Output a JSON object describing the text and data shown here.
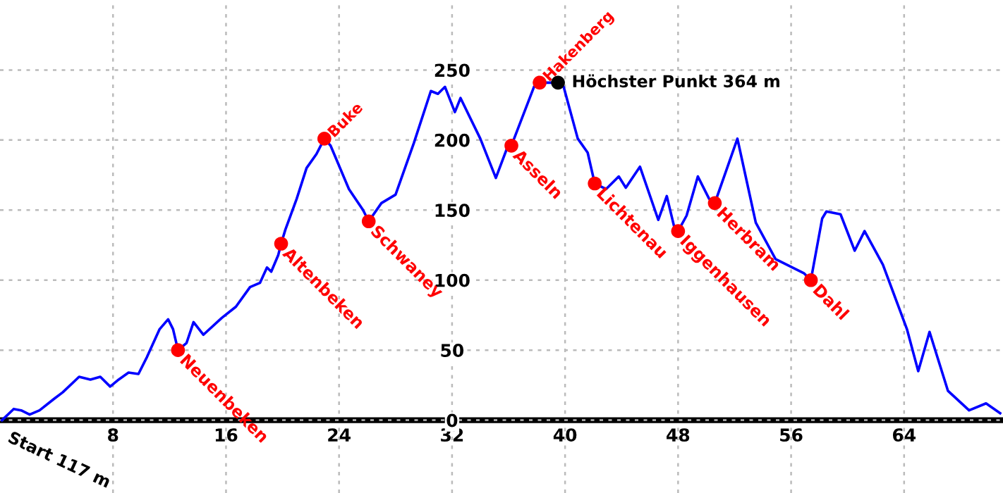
{
  "chart_data": {
    "type": "line",
    "xlim": [
      0,
      71
    ],
    "ylim": [
      -52,
      300
    ],
    "xticks": [
      8,
      16,
      24,
      32,
      40,
      48,
      56,
      64
    ],
    "yticks": [
      0,
      50,
      100,
      150,
      200,
      250
    ],
    "grid": true,
    "line_style": "solid",
    "series": [
      {
        "color": "#0000ff",
        "x": [
          0.14,
          0.97,
          1.5,
          2.1,
          2.8,
          3.8,
          4.45,
          5.6,
          6.4,
          7.1,
          7.8,
          8.4,
          9.1,
          9.8,
          10.4,
          11.3,
          11.9,
          12.25,
          12.6,
          13.2,
          13.7,
          14.4,
          15.7,
          16.7,
          17.7,
          18.4,
          18.9,
          19.2,
          19.7,
          19.9,
          20.2,
          21.0,
          21.7,
          22.4,
          22.96,
          23.4,
          24.7,
          25.7,
          26.1,
          27.0,
          28.0,
          29.3,
          30.5,
          31.0,
          31.5,
          32.2,
          32.6,
          34.0,
          35.1,
          35.96,
          36.2,
          37.8,
          38.2,
          39.5,
          39.9,
          40.9,
          41.6,
          42.1,
          42.9,
          43.8,
          44.3,
          45.3,
          46.6,
          47.2,
          47.7,
          48.0,
          48.6,
          49.4,
          50.2,
          50.6,
          52.2,
          53.5,
          54.9,
          56.9,
          57.4,
          58.2,
          58.5,
          59.5,
          60.5,
          61.2,
          62.5,
          64.2,
          65.0,
          65.8,
          67.1,
          68.6,
          69.8,
          70.8
        ],
        "values": [
          0,
          8,
          7,
          4,
          7,
          15,
          20,
          31,
          29,
          31,
          24,
          29,
          34,
          33,
          45,
          65,
          72,
          65,
          50,
          55,
          70,
          61,
          73,
          81,
          95,
          98,
          109,
          106,
          118,
          126,
          136,
          158,
          180,
          190,
          201,
          196,
          165,
          150,
          142,
          155,
          161,
          198,
          235,
          233,
          238,
          220,
          230,
          201,
          173,
          196,
          196,
          238,
          241,
          241,
          238,
          201,
          191,
          169,
          165,
          174,
          166,
          181,
          143,
          160,
          139,
          135,
          146,
          174,
          158,
          155,
          201,
          141,
          115,
          105,
          100,
          144,
          149,
          147,
          121,
          135,
          111,
          65,
          35,
          63,
          21,
          7,
          12,
          5
        ]
      },
      {
        "type": "scatter",
        "marker": "circle",
        "color": "#ff0000",
        "x": [
          12.6,
          19.9,
          22.96,
          26.1,
          36.2,
          38.2,
          42.1,
          48.0,
          50.6,
          57.4
        ],
        "values": [
          50,
          126,
          201,
          142,
          196,
          241,
          169,
          135,
          155,
          100
        ]
      },
      {
        "type": "scatter",
        "marker": "circle",
        "name": "Höchster Punkt 364 m",
        "color": "#000000",
        "x": [
          39.5
        ],
        "values": [
          241
        ]
      }
    ],
    "annotations": [
      {
        "text": "Neuenbeken",
        "x": 12.6,
        "y": 50
      },
      {
        "text": "Altenbeken",
        "x": 19.9,
        "y": 126
      },
      {
        "text": "Buke",
        "x": 22.96,
        "y": 201
      },
      {
        "text": "Schwaney",
        "x": 26.1,
        "y": 142
      },
      {
        "text": "Asseln",
        "x": 36.2,
        "y": 196
      },
      {
        "text": "Hakenberg",
        "x": 38.2,
        "y": 241
      },
      {
        "text": "Lichtenau",
        "x": 42.1,
        "y": 169
      },
      {
        "text": "Iggenhausen",
        "x": 48.0,
        "y": 135
      },
      {
        "text": "Herbram",
        "x": 50.6,
        "y": 155
      },
      {
        "text": "Dahl",
        "x": 57.4,
        "y": 100
      },
      "Start 117 m"
    ]
  }
}
